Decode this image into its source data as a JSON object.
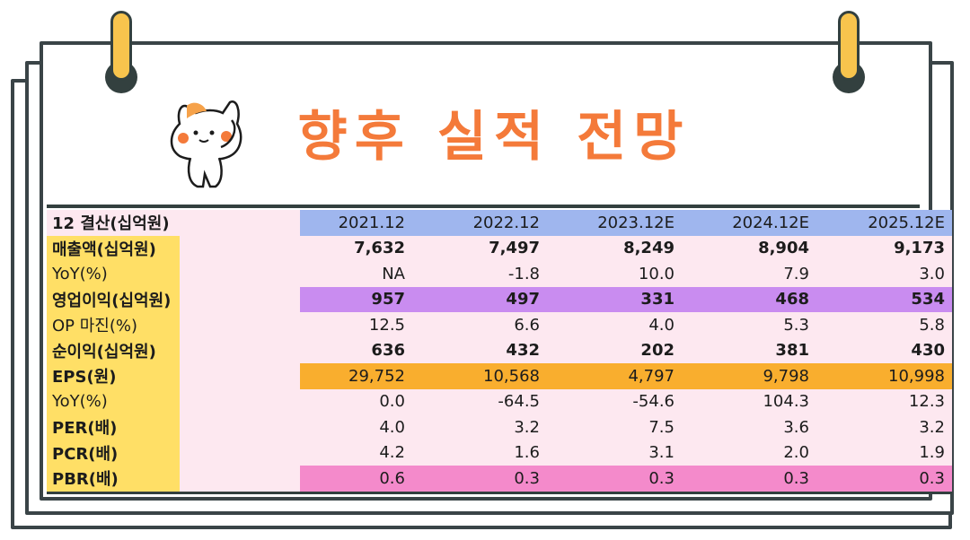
{
  "title": "향후 실적 전망",
  "table": {
    "corner_label": "12 결산(십억원)",
    "years": [
      "2021.12",
      "2022.12",
      "2023.12E",
      "2024.12E",
      "2025.12E"
    ],
    "rows": [
      {
        "label": "매출액(십억원)",
        "values": [
          "7,632",
          "7,497",
          "8,249",
          "8,904",
          "9,173"
        ]
      },
      {
        "label": "YoY(%)",
        "values": [
          "NA",
          "-1.8",
          "10.0",
          "7.9",
          "3.0"
        ]
      },
      {
        "label": "영업이익(십억원)",
        "values": [
          "957",
          "497",
          "331",
          "468",
          "534"
        ]
      },
      {
        "label": "OP 마진(%)",
        "values": [
          "12.5",
          "6.6",
          "4.0",
          "5.3",
          "5.8"
        ]
      },
      {
        "label": "순이익(십억원)",
        "values": [
          "636",
          "432",
          "202",
          "381",
          "430"
        ]
      },
      {
        "label": "EPS(원)",
        "values": [
          "29,752",
          "10,568",
          "4,797",
          "9,798",
          "10,998"
        ]
      },
      {
        "label": "YoY(%)",
        "values": [
          "0.0",
          "-64.5",
          "-54.6",
          "104.3",
          "12.3"
        ]
      },
      {
        "label": "PER(배)",
        "values": [
          "4.0",
          "3.2",
          "7.5",
          "3.6",
          "3.2"
        ]
      },
      {
        "label": "PCR(배)",
        "values": [
          "4.2",
          "1.6",
          "3.1",
          "2.0",
          "1.9"
        ]
      },
      {
        "label": "PBR(배)",
        "values": [
          "0.6",
          "0.3",
          "0.3",
          "0.3",
          "0.3"
        ]
      }
    ]
  },
  "colors": {
    "title": "#f47a3a",
    "year_header": "#9fb6ee",
    "label_column": "#ffdf66",
    "operating_profit_highlight": "#c98cf0",
    "eps_highlight": "#f9ae2e",
    "pbr_highlight": "#f48acb",
    "background": "#fde8f0",
    "frame": "#33403f",
    "binder_clip": "#f8c44d"
  },
  "icons": [
    "binder-clip-icon",
    "cat-mascot-icon"
  ]
}
